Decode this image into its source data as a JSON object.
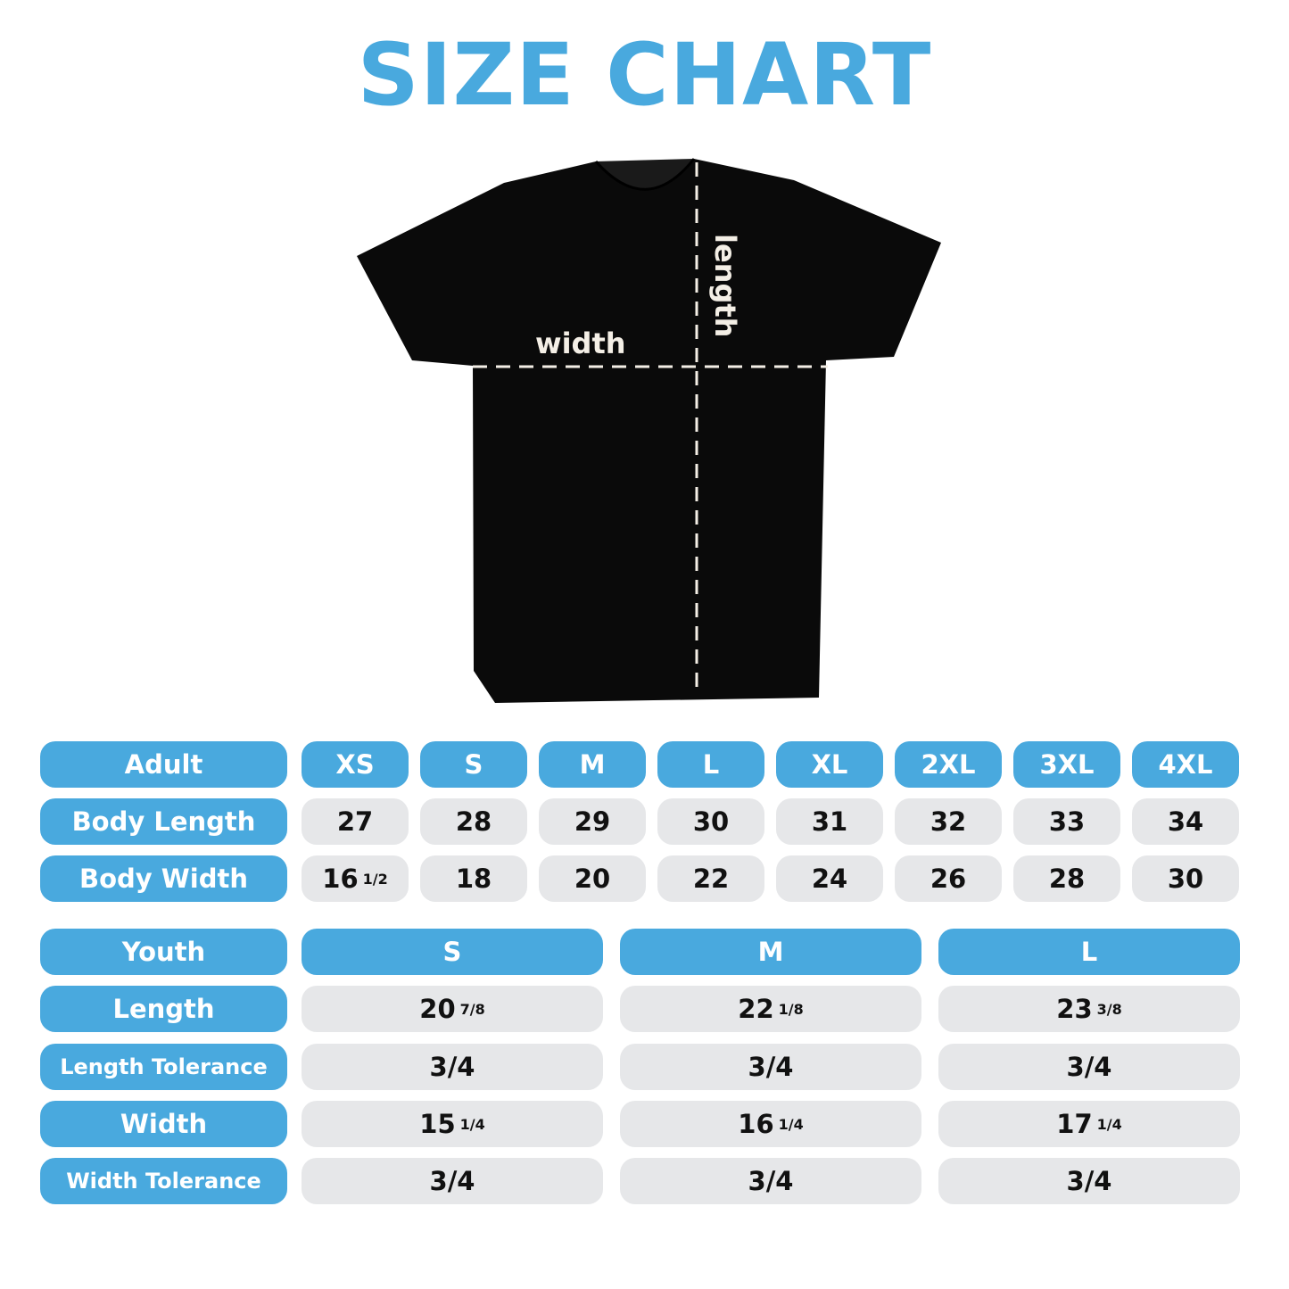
{
  "title": "SIZE CHART",
  "shirt": {
    "width_label": "width",
    "length_label": "length",
    "shirt_color": "#0a0a0a"
  },
  "colors": {
    "accent": "#49a9de",
    "cell": "#e6e7e9"
  },
  "adult": {
    "header": "Adult",
    "sizes": [
      "XS",
      "S",
      "M",
      "L",
      "XL",
      "2XL",
      "3XL",
      "4XL"
    ],
    "rows": [
      {
        "label": "Body Length",
        "values": [
          {
            "n": "27"
          },
          {
            "n": "28"
          },
          {
            "n": "29"
          },
          {
            "n": "30"
          },
          {
            "n": "31"
          },
          {
            "n": "32"
          },
          {
            "n": "33"
          },
          {
            "n": "34"
          }
        ]
      },
      {
        "label": "Body Width",
        "values": [
          {
            "n": "16",
            "f": "1/2"
          },
          {
            "n": "18"
          },
          {
            "n": "20"
          },
          {
            "n": "22"
          },
          {
            "n": "24"
          },
          {
            "n": "26"
          },
          {
            "n": "28"
          },
          {
            "n": "30"
          }
        ]
      }
    ]
  },
  "youth": {
    "header": "Youth",
    "sizes": [
      "S",
      "M",
      "L"
    ],
    "rows": [
      {
        "label": "Length",
        "values": [
          {
            "n": "20",
            "f": "7/8"
          },
          {
            "n": "22",
            "f": "1/8"
          },
          {
            "n": "23",
            "f": "3/8"
          }
        ]
      },
      {
        "label": "Length Tolerance",
        "values": [
          {
            "n": "3/4"
          },
          {
            "n": "3/4"
          },
          {
            "n": "3/4"
          }
        ]
      },
      {
        "label": "Width",
        "values": [
          {
            "n": "15",
            "f": "1/4"
          },
          {
            "n": "16",
            "f": "1/4"
          },
          {
            "n": "17",
            "f": "1/4"
          }
        ]
      },
      {
        "label": "Width Tolerance",
        "values": [
          {
            "n": "3/4"
          },
          {
            "n": "3/4"
          },
          {
            "n": "3/4"
          }
        ]
      }
    ]
  }
}
